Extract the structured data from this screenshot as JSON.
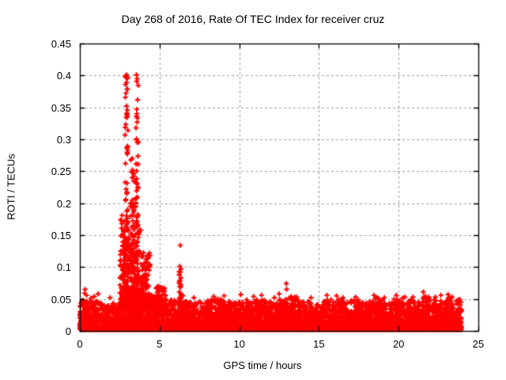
{
  "chart_data": {
    "type": "scatter",
    "title": "Day 268 of 2016, Rate Of TEC Index for receiver cruz",
    "xlabel": "GPS time / hours",
    "ylabel": "ROTI / TECUs",
    "xlim": [
      0,
      25
    ],
    "ylim": [
      0,
      0.45
    ],
    "x_ticks": [
      0,
      5,
      10,
      15,
      20,
      25
    ],
    "x_tick_labels": [
      "0",
      "5",
      "10",
      "15",
      "20",
      "25"
    ],
    "y_ticks": [
      0,
      0.05,
      0.1,
      0.15,
      0.2,
      0.25,
      0.3,
      0.35,
      0.4,
      0.45
    ],
    "y_tick_labels": [
      "0",
      "0.05",
      "0.1",
      "0.15",
      "0.2",
      "0.25",
      "0.3",
      "0.35",
      "0.4",
      "0.45"
    ],
    "grid": true,
    "legend": "none",
    "marker": "plus",
    "colors": {
      "marker": "#ff0000",
      "grid": "#9e9e9e",
      "axis": "#000000",
      "text": "#000000",
      "bg": "#ffffff"
    },
    "baseline_band": {
      "description": "dense noise band of ROTI values covering the whole day",
      "n": 6400,
      "t_min": 0,
      "t_max": 23.95,
      "y_floor": 0.002,
      "power": 2.6,
      "tip_chance": 0.012,
      "envelope_step_hours": 0.5,
      "envelope": [
        0.048,
        0.052,
        0.046,
        0.042,
        0.045,
        0.055,
        0.06,
        0.065,
        0.06,
        0.055,
        0.05,
        0.048,
        0.05,
        0.052,
        0.044,
        0.046,
        0.048,
        0.05,
        0.046,
        0.044,
        0.05,
        0.046,
        0.05,
        0.048,
        0.044,
        0.05,
        0.054,
        0.05,
        0.046,
        0.043,
        0.046,
        0.05,
        0.05,
        0.046,
        0.049,
        0.046,
        0.05,
        0.053,
        0.046,
        0.05,
        0.046,
        0.049,
        0.046,
        0.055,
        0.05,
        0.047,
        0.052,
        0.05
      ]
    },
    "spike_clusters": [
      {
        "t": 2.93,
        "dt": 0.09,
        "y_min": 0.05,
        "y_max": 0.4,
        "n": 85,
        "bias": 1.9
      },
      {
        "t": 3.58,
        "dt": 0.09,
        "y_min": 0.05,
        "y_max": 0.4,
        "n": 65,
        "bias": 2.1
      },
      {
        "t": 3.3,
        "dt": 0.13,
        "y_min": 0.05,
        "y_max": 0.27,
        "n": 55,
        "bias": 1.7
      },
      {
        "t": 2.68,
        "dt": 0.17,
        "y_min": 0.04,
        "y_max": 0.19,
        "n": 55,
        "bias": 1.8
      },
      {
        "t": 3.25,
        "dt": 0.6,
        "y_min": 0.035,
        "y_max": 0.16,
        "n": 280,
        "bias": 2.3
      },
      {
        "t": 4.1,
        "dt": 0.3,
        "y_min": 0.035,
        "y_max": 0.125,
        "n": 110,
        "bias": 2.0
      },
      {
        "t": 5.05,
        "dt": 0.35,
        "y_min": 0.03,
        "y_max": 0.072,
        "n": 70,
        "bias": 1.9
      },
      {
        "t": 6.3,
        "dt": 0.07,
        "y_min": 0.03,
        "y_max": 0.095,
        "n": 22,
        "bias": 1.6
      }
    ],
    "feature_points": [
      [
        2.93,
        0.401
      ],
      [
        2.97,
        0.396
      ],
      [
        2.93,
        0.389
      ],
      [
        3.55,
        0.401
      ],
      [
        3.6,
        0.395
      ],
      [
        2.93,
        0.352
      ],
      [
        3.57,
        0.347
      ],
      [
        2.95,
        0.341
      ],
      [
        2.92,
        0.334
      ],
      [
        3.58,
        0.34
      ],
      [
        3.62,
        0.333
      ],
      [
        3.6,
        0.327
      ],
      [
        3.28,
        0.27
      ],
      [
        3.3,
        0.252
      ],
      [
        3.35,
        0.247
      ],
      [
        3.28,
        0.24
      ],
      [
        3.57,
        0.238
      ],
      [
        3.53,
        0.232
      ],
      [
        2.9,
        0.222
      ],
      [
        2.95,
        0.215
      ],
      [
        3.3,
        0.205
      ],
      [
        3.28,
        0.196
      ],
      [
        3.0,
        0.19
      ],
      [
        2.93,
        0.18
      ],
      [
        2.97,
        0.176
      ],
      [
        3.55,
        0.178
      ],
      [
        3.58,
        0.172
      ],
      [
        6.3,
        0.134
      ],
      [
        6.27,
        0.101
      ],
      [
        6.34,
        0.097
      ],
      [
        6.3,
        0.092
      ],
      [
        6.28,
        0.079
      ],
      [
        6.35,
        0.072
      ],
      [
        6.25,
        0.061
      ],
      [
        6.38,
        0.056
      ],
      [
        6.31,
        0.05
      ],
      [
        12.95,
        0.074
      ],
      [
        12.97,
        0.065
      ],
      [
        12.5,
        0.058
      ],
      [
        0.33,
        0.065
      ],
      [
        0.3,
        0.059
      ],
      [
        0.42,
        0.056
      ],
      [
        0.9,
        0.054
      ],
      [
        1.15,
        0.058
      ],
      [
        1.9,
        0.052
      ],
      [
        4.85,
        0.06
      ],
      [
        5.3,
        0.062
      ],
      [
        5.35,
        0.055
      ],
      [
        7.15,
        0.052
      ],
      [
        8.4,
        0.054
      ],
      [
        9.05,
        0.055
      ],
      [
        10.1,
        0.057
      ],
      [
        10.9,
        0.054
      ],
      [
        11.4,
        0.056
      ],
      [
        12.2,
        0.052
      ],
      [
        13.6,
        0.053
      ],
      [
        14.5,
        0.052
      ],
      [
        15.5,
        0.056
      ],
      [
        16.1,
        0.055
      ],
      [
        16.5,
        0.052
      ],
      [
        17.3,
        0.053
      ],
      [
        18.45,
        0.056
      ],
      [
        19.1,
        0.052
      ],
      [
        19.85,
        0.056
      ],
      [
        20.4,
        0.053
      ],
      [
        21.55,
        0.061
      ],
      [
        21.6,
        0.054
      ],
      [
        22.3,
        0.053
      ],
      [
        22.65,
        0.056
      ],
      [
        23.1,
        0.057
      ],
      [
        23.35,
        0.053
      ]
    ]
  }
}
